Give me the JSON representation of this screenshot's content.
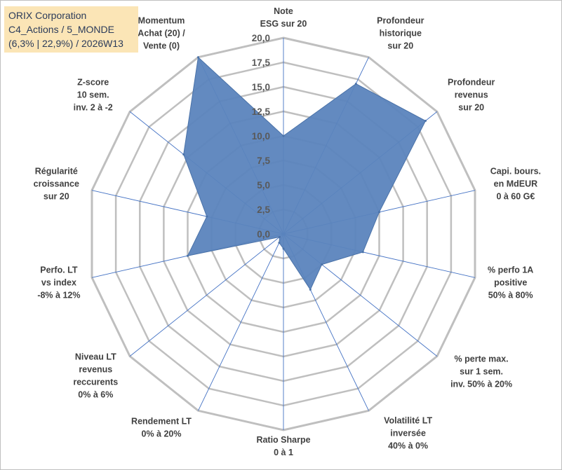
{
  "title_box": {
    "line1": "ORIX Corporation",
    "line2": "C4_Actions / 5_MONDE",
    "line3": "(6,3% | 22,9%) / 2026W13"
  },
  "colors": {
    "fill": "#5b84bd",
    "stroke": "#4a72a8",
    "grid": "#bfbfbf",
    "spoke": "#4472c4",
    "title_bg": "#fbe5b6"
  },
  "chart_data": {
    "type": "radar",
    "r_range": [
      0,
      20
    ],
    "tick_labels": [
      "0,0",
      "2,5",
      "5,0",
      "7,5",
      "10,0",
      "12,5",
      "15,0",
      "17,5",
      "20,0"
    ],
    "axes": [
      {
        "label": [
          "Note",
          "ESG sur 20"
        ],
        "value": 10.0
      },
      {
        "label": [
          "Profondeur",
          "historique",
          "sur 20"
        ],
        "value": 17.0
      },
      {
        "label": [
          "Profondeur",
          "revenus",
          "sur 20"
        ],
        "value": 18.5
      },
      {
        "label": [
          "Capi. bours.",
          "en MdEUR",
          "0 à 60 G€"
        ],
        "value": 10.0
      },
      {
        "label": [
          "% perfo 1A",
          "positive",
          "50% à 80%"
        ],
        "value": 8.3
      },
      {
        "label": [
          "% perte max.",
          "sur 1 sem.",
          "inv. 50% à 20%"
        ],
        "value": 5.0
      },
      {
        "label": [
          "Volatilité LT",
          "inversée",
          "40% à 0%"
        ],
        "value": 6.3
      },
      {
        "label": [
          "Ratio Sharpe",
          "0 à 1"
        ],
        "value": 1.5
      },
      {
        "label": [
          "Rendement LT",
          "0% à 20%"
        ],
        "value": 1.0
      },
      {
        "label": [
          "Niveau LT",
          "revenus",
          "reccurents",
          "0% à 6%"
        ],
        "value": 0.5
      },
      {
        "label": [
          "Perfo. LT",
          "vs index",
          "-8% à 12%"
        ],
        "value": 10.0
      },
      {
        "label": [
          "Régularité",
          "croissance",
          "sur 20"
        ],
        "value": 8.0
      },
      {
        "label": [
          "Z-score",
          "10 sem.",
          "inv. 2 à -2"
        ],
        "value": 13.0
      },
      {
        "label": [
          "Momentum",
          "Achat (20) /",
          "Vente (0)"
        ],
        "value": 20.0
      }
    ]
  }
}
